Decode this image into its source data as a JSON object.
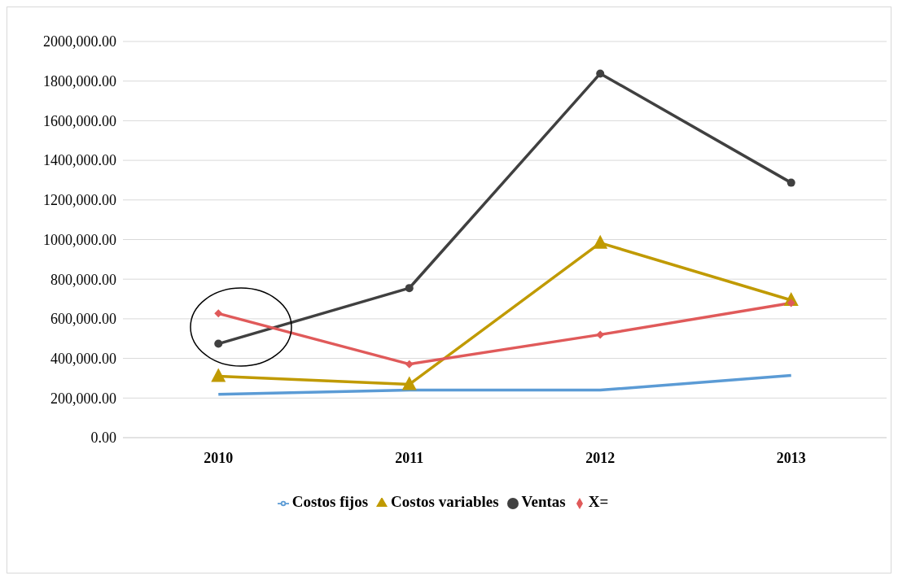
{
  "chart_data": {
    "type": "line",
    "categories": [
      "2010",
      "2011",
      "2012",
      "2013"
    ],
    "series": [
      {
        "name": "Costos fijos",
        "color": "#5b9bd5",
        "marker": "none",
        "values": [
          219000,
          240000,
          240000,
          314000
        ]
      },
      {
        "name": "Costos variables",
        "color": "#c09a00",
        "marker": "triangle",
        "values": [
          310000,
          269000,
          983000,
          694000
        ]
      },
      {
        "name": "Ventas",
        "color": "#404040",
        "marker": "circle",
        "values": [
          474000,
          755000,
          1838000,
          1287000
        ]
      },
      {
        "name": "X=",
        "color": "#e05a5a",
        "marker": "diamond",
        "values": [
          627000,
          371000,
          520000,
          680000
        ]
      }
    ],
    "ylim": [
      0,
      2000000
    ],
    "yticks": [
      {
        "value": 0,
        "label": "0.00"
      },
      {
        "value": 200000,
        "label": "200,000.00"
      },
      {
        "value": 400000,
        "label": "400,000.00"
      },
      {
        "value": 600000,
        "label": "600,000.00"
      },
      {
        "value": 800000,
        "label": "800,000.00"
      },
      {
        "value": 1000000,
        "label": "1000,000.00"
      },
      {
        "value": 1200000,
        "label": "1200,000.00"
      },
      {
        "value": 1400000,
        "label": "1400,000.00"
      },
      {
        "value": 1600000,
        "label": "1600,000.00"
      },
      {
        "value": 1800000,
        "label": "1800,000.00"
      },
      {
        "value": 2000000,
        "label": "2000,000.00"
      }
    ],
    "grid": "y",
    "legend": "bottom",
    "line_style": "solid"
  }
}
